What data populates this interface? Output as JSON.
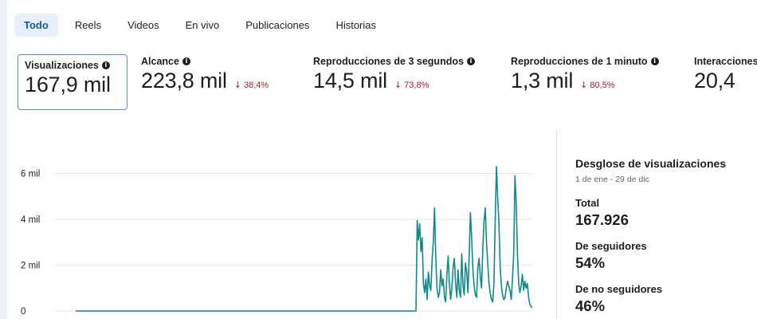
{
  "tabs": [
    {
      "label": "Todo",
      "active": true
    },
    {
      "label": "Reels",
      "active": false
    },
    {
      "label": "Videos",
      "active": false
    },
    {
      "label": "En vivo",
      "active": false
    },
    {
      "label": "Publicaciones",
      "active": false
    },
    {
      "label": "Historias",
      "active": false
    }
  ],
  "metrics": [
    {
      "label": "Visualizaciones",
      "value": "167,9 mil",
      "change": ""
    },
    {
      "label": "Alcance",
      "value": "223,8 mil",
      "change": "38,4%"
    },
    {
      "label": "Reproducciones de 3 segundos",
      "value": "14,5 mil",
      "change": "73,8%"
    },
    {
      "label": "Reproducciones de 1 minuto",
      "value": "1,3 mil",
      "change": "80,5%"
    },
    {
      "label": "Interacciones",
      "value": "20,4"
    }
  ],
  "colors": {
    "line": "#0f8a8a",
    "accent": "#0b5cad",
    "decrease": "#a0202a"
  },
  "chart_data": {
    "type": "line",
    "y_ticks": [
      "0",
      "2 mil",
      "4 mil",
      "6 mil"
    ],
    "ylim": [
      0,
      6700
    ],
    "grid": true,
    "series": [
      {
        "values": [
          0,
          0,
          0,
          0,
          0,
          0,
          0,
          0,
          0,
          0,
          0,
          0,
          0,
          0,
          0,
          0,
          0,
          0,
          0,
          0,
          0,
          0,
          0,
          0,
          0,
          0,
          0,
          0,
          0,
          0,
          0,
          0,
          0,
          0,
          0,
          0,
          0,
          0,
          0,
          0,
          0,
          0,
          0,
          0,
          0,
          0,
          0,
          0,
          0,
          0,
          0,
          0,
          0,
          0,
          0,
          0,
          0,
          0,
          0,
          0,
          0,
          0,
          0,
          0,
          0,
          0,
          0,
          0,
          0,
          0,
          0,
          0,
          0,
          0,
          0,
          0,
          0,
          0,
          0,
          0,
          0,
          0,
          0,
          0,
          0,
          0,
          0,
          0,
          0,
          0,
          0,
          0,
          0,
          0,
          0,
          0,
          0,
          0,
          0,
          0,
          0,
          0,
          0,
          0,
          0,
          0,
          0,
          0,
          0,
          0,
          0,
          0,
          0,
          0,
          0,
          0,
          0,
          0,
          0,
          0,
          0,
          0,
          0,
          0,
          0,
          0,
          0,
          0,
          0,
          0,
          0,
          0,
          0,
          0,
          0,
          0,
          0,
          0,
          0,
          0,
          0,
          0,
          0,
          0,
          0,
          0,
          0,
          0,
          0,
          0,
          0,
          0,
          0,
          0,
          0,
          0,
          0,
          0,
          0,
          0,
          0,
          0,
          0,
          0,
          0,
          0,
          0,
          0,
          0,
          0,
          0,
          0,
          0,
          0,
          0,
          0,
          0,
          0,
          0,
          0,
          0,
          0,
          0,
          0,
          0,
          0,
          0,
          0,
          0,
          0,
          0,
          0,
          0,
          0,
          0,
          0,
          0,
          0,
          0,
          0,
          0,
          0,
          0,
          0,
          0,
          0,
          0,
          0,
          0,
          0,
          0,
          0,
          0,
          0,
          0,
          0,
          0,
          0,
          0,
          0,
          0,
          0,
          0,
          0,
          0,
          0,
          0,
          0,
          0,
          0,
          0,
          0,
          0,
          0,
          0,
          0,
          0,
          0,
          0,
          0,
          0,
          0,
          0,
          0,
          0,
          0,
          0,
          0,
          0,
          0,
          0,
          0,
          0,
          0,
          0,
          0,
          0,
          0,
          0,
          0,
          0,
          0,
          0,
          0,
          0,
          0,
          0,
          0,
          0,
          0,
          0,
          0,
          0,
          0,
          0,
          0,
          3950,
          3100,
          3800,
          2600,
          3200,
          1200,
          800,
          1400,
          500,
          1700,
          1100,
          900,
          2200,
          3000,
          4500,
          2300,
          1000,
          600,
          800,
          1800,
          1100,
          1400,
          600,
          400,
          1600,
          2400,
          1200,
          500,
          1000,
          1900,
          2300,
          1200,
          600,
          1800,
          900,
          600,
          2500,
          1100,
          700,
          2100,
          1700,
          800,
          2400,
          4300,
          3200,
          1800,
          1100,
          700,
          600,
          1900,
          2300,
          1500,
          1000,
          2700,
          3900,
          4500,
          3000,
          2100,
          1200,
          800,
          500,
          400,
          1200,
          3800,
          6300,
          5000,
          3900,
          2000,
          1100,
          700,
          500,
          600,
          1000,
          1300,
          1100,
          900,
          500,
          1400,
          2500,
          5900,
          4700,
          2500,
          1200,
          800,
          1100,
          1600,
          900,
          1300,
          1000,
          1200,
          600,
          300,
          200,
          150
        ]
      }
    ]
  },
  "breakdown": {
    "title": "Desglose de visualizaciones",
    "date_range": "1 de ene - 29 de dic",
    "items": [
      {
        "label": "Total",
        "value": "167.926"
      },
      {
        "label": "De seguidores",
        "value": "54%"
      },
      {
        "label": "De no seguidores",
        "value": "46%"
      }
    ]
  }
}
